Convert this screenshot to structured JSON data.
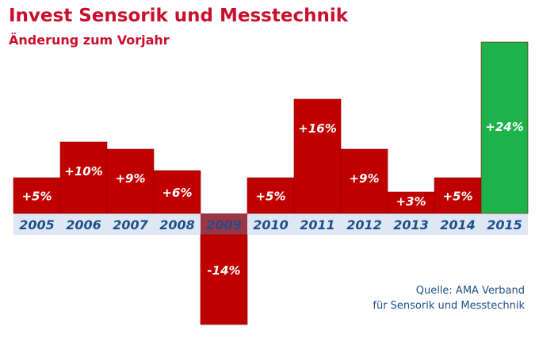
{
  "chart_data": {
    "type": "bar",
    "title": "Invest Sensorik und Messtechnik",
    "subtitle": "Änderung zum Vorjahr",
    "categories": [
      "2005",
      "2006",
      "2007",
      "2008",
      "2009",
      "2010",
      "2011",
      "2012",
      "2013",
      "2014",
      "2015"
    ],
    "values": [
      5,
      10,
      9,
      6,
      -14,
      5,
      16,
      9,
      3,
      5,
      24
    ],
    "data_labels": [
      "+5%",
      "+10%",
      "+9%",
      "+6%",
      "-14%",
      "+5%",
      "+16%",
      "+9%",
      "+3%",
      "+5%",
      "+24%"
    ],
    "ylim": [
      -14,
      24
    ],
    "grid": false,
    "legend": "none",
    "highlight_category": "2015",
    "source": [
      "Quelle: AMA Verband",
      "für Sensorik und Messtechnik"
    ]
  },
  "colors": {
    "bar": "#c00000",
    "highlight_bar": "#1db34a",
    "axis_band": "#dde8f4",
    "negative_band": "#9a3545",
    "title": "#c8102e",
    "tick_text": "#1f4e8c"
  }
}
